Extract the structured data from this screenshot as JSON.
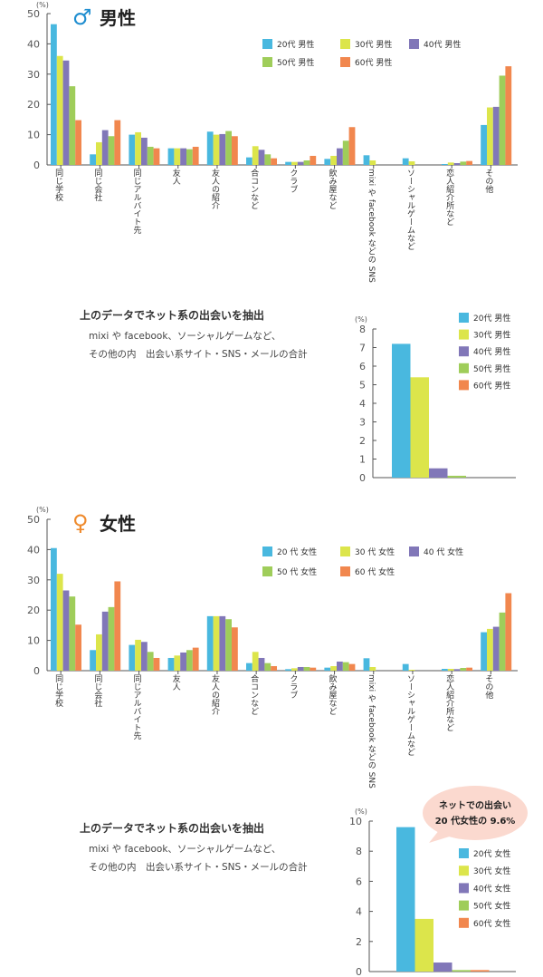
{
  "chart_data": [
    {
      "type": "bar",
      "title_symbol": "♂",
      "title": "男性",
      "unit": "(%)",
      "ylim": [
        0,
        50
      ],
      "yticks": [
        0,
        10,
        20,
        30,
        40,
        50
      ],
      "categories": [
        "同じ学校",
        "同じ会社",
        "同じアルバイト先",
        "友人",
        "友人の紹介",
        "合コンなど",
        "クラブ",
        "飲み屋など",
        "mixi や facebook などの SNS",
        "ソーシャルゲームなど",
        "恋人紹介所など",
        "その他"
      ],
      "series": [
        {
          "name": "20代 男性",
          "values": [
            46.5,
            3.5,
            10,
            5.5,
            11,
            2.5,
            1,
            2,
            3.2,
            2.2,
            0.3,
            13.2
          ]
        },
        {
          "name": "30代 男性",
          "values": [
            36,
            7.5,
            10.8,
            5.5,
            10,
            6.2,
            1,
            3,
            1.5,
            1.2,
            0.8,
            19
          ]
        },
        {
          "name": "40代 男性",
          "values": [
            34.5,
            11.5,
            9,
            5.5,
            10.2,
            5,
            1,
            5.5,
            0,
            0,
            0.6,
            19.2
          ]
        },
        {
          "name": "50代 男性",
          "values": [
            26,
            9.5,
            6,
            5.2,
            11.2,
            3.5,
            1.5,
            8,
            0,
            0,
            1.1,
            29.5
          ]
        },
        {
          "name": "60代 男性",
          "values": [
            14.8,
            14.8,
            5.5,
            6,
            9.5,
            2.2,
            3,
            12.5,
            0,
            0,
            1.3,
            32.6
          ]
        }
      ]
    },
    {
      "type": "bar",
      "unit": "(%)",
      "ylim": [
        0,
        8
      ],
      "yticks": [
        0,
        1,
        2,
        3,
        4,
        5,
        6,
        7,
        8
      ],
      "categories": [
        ""
      ],
      "series": [
        {
          "name": "20代 男性",
          "values": [
            7.2
          ]
        },
        {
          "name": "30代 男性",
          "values": [
            5.4
          ]
        },
        {
          "name": "40代 男性",
          "values": [
            0.5
          ]
        },
        {
          "name": "50代 男性",
          "values": [
            0.1
          ]
        },
        {
          "name": "60代 男性",
          "values": [
            0
          ]
        }
      ]
    },
    {
      "type": "bar",
      "title_symbol": "♀",
      "title": "女性",
      "unit": "(%)",
      "ylim": [
        0,
        50
      ],
      "yticks": [
        0,
        10,
        20,
        30,
        40,
        50
      ],
      "categories": [
        "同じ学校",
        "同じ会社",
        "同じアルバイト先",
        "友人",
        "友人の紹介",
        "合コンなど",
        "クラブ",
        "飲み屋など",
        "mixi や facebook などの SNS",
        "ソーシャルゲームなど",
        "恋人紹介所など",
        "その他"
      ],
      "series": [
        {
          "name": "20 代 女性",
          "values": [
            40.5,
            6.8,
            8.5,
            4.2,
            18,
            2.5,
            0.5,
            1,
            4.1,
            2.2,
            0.6,
            12.7
          ]
        },
        {
          "name": "30 代 女性",
          "values": [
            32,
            12,
            10.2,
            5,
            18,
            6.2,
            0.8,
            1.5,
            1.2,
            0.3,
            0.6,
            13.8
          ]
        },
        {
          "name": "40 代 女性",
          "values": [
            26.5,
            19.5,
            9.5,
            6,
            18,
            4.2,
            1.2,
            3,
            0,
            0,
            0.5,
            14.5
          ]
        },
        {
          "name": "50 代 女性",
          "values": [
            24.5,
            21,
            6.2,
            6.8,
            17,
            2.5,
            1.2,
            2.8,
            0,
            0,
            0.9,
            19.2
          ]
        },
        {
          "name": "60 代 女性",
          "values": [
            15.2,
            29.5,
            4.2,
            7.6,
            14.3,
            1.5,
            1,
            2.2,
            0,
            0,
            1,
            25.6
          ]
        }
      ]
    },
    {
      "type": "bar",
      "unit": "(%)",
      "ylim": [
        0,
        10
      ],
      "yticks": [
        0,
        2,
        4,
        6,
        8,
        10
      ],
      "categories": [
        ""
      ],
      "series": [
        {
          "name": "20代 女性",
          "values": [
            9.6
          ]
        },
        {
          "name": "30代 女性",
          "values": [
            3.5
          ]
        },
        {
          "name": "40代 女性",
          "values": [
            0.6
          ]
        },
        {
          "name": "50代 女性",
          "values": [
            0.1
          ]
        },
        {
          "name": "60代 女性",
          "values": [
            0.1
          ]
        }
      ]
    }
  ],
  "colors": [
    "#49b8df",
    "#dce54b",
    "#8177b8",
    "#9fcd5a",
    "#f1874e"
  ],
  "title_colors": [
    "#1f8ed0",
    "#ef8a2c"
  ],
  "notes": [
    {
      "heading": "上のデータでネット系の出会いを抽出",
      "lines": [
        "mixi や facebook、ソーシャルゲームなど、",
        "その他の内　出会い系サイト・SNS・メールの合計"
      ]
    },
    {
      "heading": "上のデータでネット系の出会いを抽出",
      "lines": [
        "mixi や facebook、ソーシャルゲームなど、",
        "その他の内　出会い系サイト・SNS・メールの合計"
      ]
    }
  ],
  "callout": {
    "lines": [
      "ネットでの出会い",
      "20 代女性の 9.6%"
    ],
    "color": "#fbd9cf"
  }
}
